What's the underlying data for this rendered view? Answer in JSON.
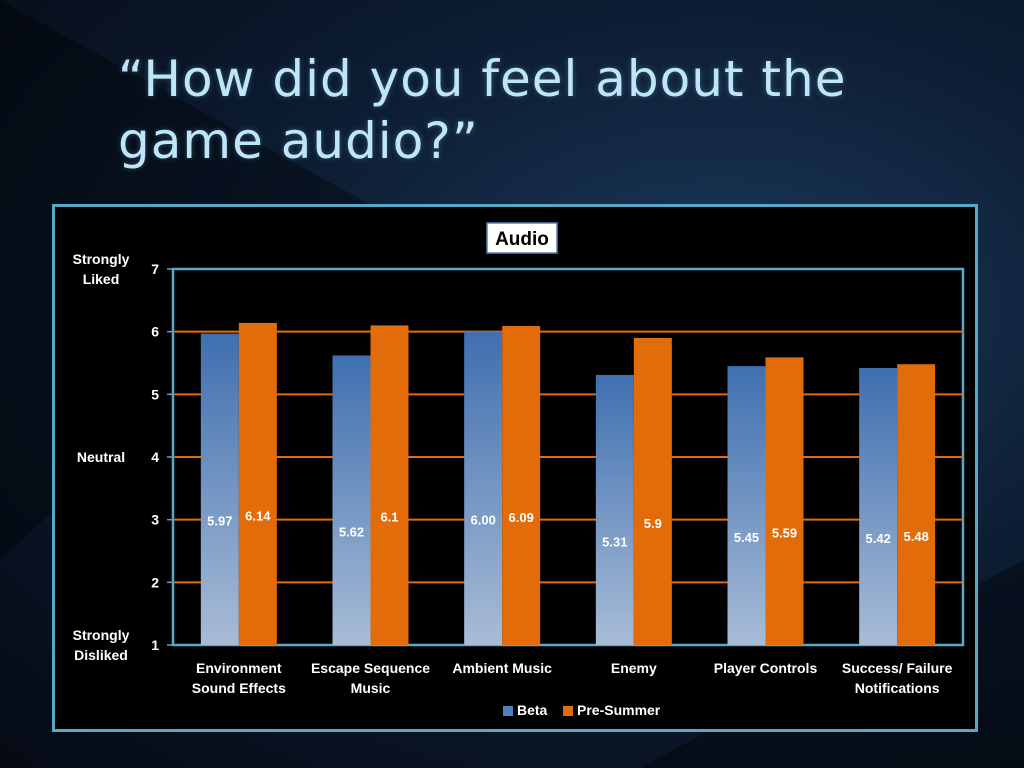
{
  "slide": {
    "title_line1": "“How did you feel about the",
    "title_line2": "game audio?”"
  },
  "chart_data": {
    "type": "bar",
    "title": "Audio",
    "categories": [
      [
        "Environment",
        "Sound Effects"
      ],
      [
        "Escape Sequence",
        "Music"
      ],
      [
        "Ambient Music"
      ],
      [
        "Enemy"
      ],
      [
        "Player Controls"
      ],
      [
        "Success/ Failure",
        "Notifications"
      ]
    ],
    "series": [
      {
        "name": "Beta",
        "values": [
          5.97,
          5.62,
          6.0,
          5.31,
          5.45,
          5.42
        ],
        "labels": [
          "5.97",
          "5.62",
          "6.00",
          "5.31",
          "5.45",
          "5.42"
        ],
        "color": "#4f81bd"
      },
      {
        "name": "Pre-Summer",
        "values": [
          6.14,
          6.1,
          6.09,
          5.9,
          5.59,
          5.48
        ],
        "labels": [
          "6.14",
          "6.1",
          "6.09",
          "5.9",
          "5.59",
          "5.48"
        ],
        "color": "#e36c0a"
      }
    ],
    "ylim": [
      1,
      7
    ],
    "yticks": [
      1,
      2,
      3,
      4,
      5,
      6,
      7
    ],
    "ylabels": [
      {
        "value": 7,
        "lines": [
          "Strongly",
          "Liked"
        ]
      },
      {
        "value": 4,
        "lines": [
          "Neutral"
        ]
      },
      {
        "value": 1,
        "lines": [
          "Strongly",
          "Disliked"
        ]
      }
    ],
    "grid": true,
    "grid_color": "#e36c0a",
    "legend_position": "bottom"
  }
}
